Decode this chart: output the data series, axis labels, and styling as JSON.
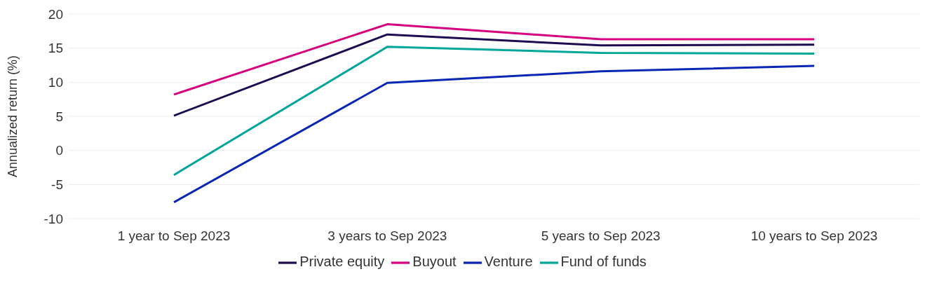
{
  "chart_data": {
    "type": "line",
    "ylabel": "Annualized return (%)",
    "categories": [
      "1 year to Sep 2023",
      "3 years to Sep 2023",
      "5 years to Sep 2023",
      "10 years to Sep 2023"
    ],
    "series": [
      {
        "name": "Private equity",
        "color": "#1e0c50",
        "values": [
          5.1,
          17.0,
          15.4,
          15.5
        ]
      },
      {
        "name": "Buyout",
        "color": "#d6007e",
        "values": [
          8.2,
          18.5,
          16.3,
          16.3
        ]
      },
      {
        "name": "Venture",
        "color": "#0a26b4",
        "values": [
          -7.6,
          9.9,
          11.6,
          12.4
        ]
      },
      {
        "name": "Fund of funds",
        "color": "#00a699",
        "values": [
          -3.6,
          15.2,
          14.3,
          14.2
        ]
      }
    ],
    "ylim": [
      -10,
      20
    ],
    "yticks": [
      -10,
      -5,
      0,
      5,
      10,
      15,
      20
    ],
    "grid": "y",
    "legend": "bottom",
    "marker": "none",
    "line_style": "solid"
  }
}
